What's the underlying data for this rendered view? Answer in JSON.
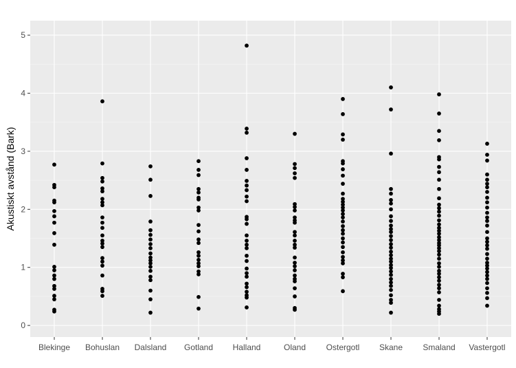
{
  "chart_data": {
    "type": "scatter",
    "title": "",
    "xlabel": "",
    "ylabel": "Akustiskt avstånd (Bark)",
    "ylim": [
      -0.2,
      5.25
    ],
    "yticks": [
      0,
      1,
      2,
      3,
      4,
      5
    ],
    "grid": true,
    "legend": "none",
    "colors": {
      "panel": "#EBEBEB",
      "grid_major": "#FFFFFF",
      "grid_minor": "#F5F5F5",
      "point": "#000000",
      "tick": "#4D4D4D"
    },
    "categories": [
      "Blekinge",
      "Bohuslan",
      "Dalsland",
      "Gotland",
      "Halland",
      "Oland",
      "Ostergotl",
      "Skane",
      "Smaland",
      "Vastergotl"
    ],
    "points": {
      "Blekinge": [
        2.77,
        2.42,
        2.38,
        2.15,
        2.12,
        1.97,
        1.88,
        1.77,
        1.59,
        1.39,
        1.01,
        0.95,
        0.86,
        0.8,
        0.68,
        0.63,
        0.51,
        0.45,
        0.27,
        0.24
      ],
      "Bohuslan": [
        3.86,
        2.79,
        2.54,
        2.48,
        2.36,
        2.31,
        2.18,
        2.12,
        2.07,
        1.86,
        1.77,
        1.68,
        1.55,
        1.46,
        1.41,
        1.35,
        1.16,
        1.1,
        1.03,
        0.86,
        0.63,
        0.59,
        0.51
      ],
      "Dalsland": [
        2.74,
        2.51,
        2.23,
        1.79,
        1.64,
        1.56,
        1.48,
        1.4,
        1.33,
        1.24,
        1.17,
        1.12,
        1.07,
        1.01,
        0.94,
        0.84,
        0.78,
        0.6,
        0.45,
        0.22
      ],
      "Gotland": [
        2.83,
        2.68,
        2.59,
        2.35,
        2.29,
        2.2,
        2.17,
        2.03,
        1.98,
        1.73,
        1.62,
        1.48,
        1.42,
        1.26,
        1.2,
        1.13,
        1.07,
        1.02,
        0.93,
        0.88,
        0.49,
        0.29
      ],
      "Halland": [
        4.82,
        3.39,
        3.32,
        2.88,
        2.68,
        2.49,
        2.41,
        2.33,
        2.22,
        2.14,
        1.87,
        1.83,
        1.75,
        1.55,
        1.46,
        1.39,
        1.33,
        1.2,
        1.11,
        0.98,
        0.9,
        0.84,
        0.72,
        0.66,
        0.58,
        0.52,
        0.48,
        0.31
      ],
      "Oland": [
        3.3,
        2.78,
        2.71,
        2.62,
        2.54,
        2.09,
        2.04,
        1.98,
        1.86,
        1.81,
        1.77,
        1.61,
        1.55,
        1.46,
        1.39,
        1.34,
        1.17,
        1.08,
        1.02,
        0.95,
        0.86,
        0.8,
        0.76,
        0.64,
        0.5,
        0.3,
        0.27
      ],
      "Ostergotl": [
        3.9,
        3.64,
        3.29,
        3.2,
        2.83,
        2.79,
        2.69,
        2.58,
        2.44,
        2.27,
        2.18,
        2.13,
        2.08,
        2.03,
        1.98,
        1.92,
        1.86,
        1.79,
        1.71,
        1.64,
        1.58,
        1.5,
        1.43,
        1.35,
        1.26,
        1.18,
        1.12,
        1.07,
        0.89,
        0.83,
        0.59
      ],
      "Skane": [
        4.1,
        3.72,
        2.96,
        2.35,
        2.27,
        2.16,
        2.1,
        2.0,
        1.88,
        1.8,
        1.72,
        1.66,
        1.61,
        1.54,
        1.47,
        1.4,
        1.34,
        1.27,
        1.21,
        1.15,
        1.1,
        1.04,
        0.99,
        0.93,
        0.87,
        0.8,
        0.74,
        0.68,
        0.61,
        0.52,
        0.44,
        0.39,
        0.22
      ],
      "Smaland": [
        3.98,
        3.65,
        3.35,
        3.19,
        2.9,
        2.86,
        2.73,
        2.64,
        2.51,
        2.35,
        2.19,
        2.08,
        2.02,
        1.96,
        1.89,
        1.81,
        1.74,
        1.68,
        1.63,
        1.58,
        1.52,
        1.47,
        1.42,
        1.38,
        1.33,
        1.28,
        1.22,
        1.15,
        1.07,
        1.01,
        0.94,
        0.89,
        0.83,
        0.77,
        0.7,
        0.64,
        0.57,
        0.44,
        0.34,
        0.28,
        0.24,
        0.2
      ],
      "Vastergotl": [
        3.13,
        2.94,
        2.84,
        2.6,
        2.51,
        2.44,
        2.38,
        2.3,
        2.2,
        2.12,
        2.03,
        1.94,
        1.86,
        1.8,
        1.72,
        1.61,
        1.5,
        1.44,
        1.38,
        1.32,
        1.23,
        1.15,
        1.08,
        1.03,
        0.98,
        0.92,
        0.86,
        0.8,
        0.73,
        0.64,
        0.56,
        0.47,
        0.34
      ]
    }
  }
}
